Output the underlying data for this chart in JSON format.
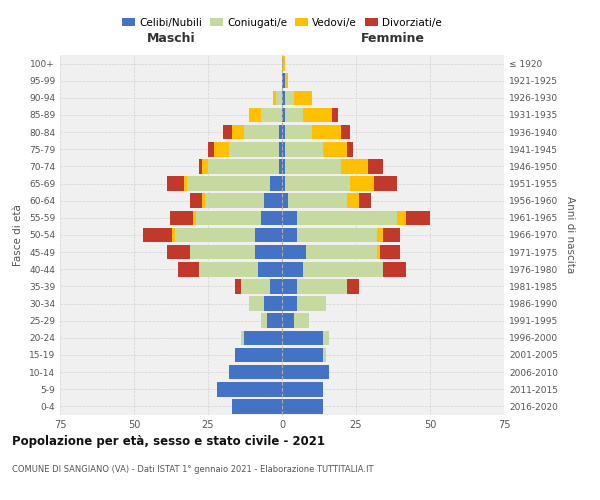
{
  "age_groups": [
    "0-4",
    "5-9",
    "10-14",
    "15-19",
    "20-24",
    "25-29",
    "30-34",
    "35-39",
    "40-44",
    "45-49",
    "50-54",
    "55-59",
    "60-64",
    "65-69",
    "70-74",
    "75-79",
    "80-84",
    "85-89",
    "90-94",
    "95-99",
    "100+"
  ],
  "birth_years": [
    "2016-2020",
    "2011-2015",
    "2006-2010",
    "2001-2005",
    "1996-2000",
    "1991-1995",
    "1986-1990",
    "1981-1985",
    "1976-1980",
    "1971-1975",
    "1966-1970",
    "1961-1965",
    "1956-1960",
    "1951-1955",
    "1946-1950",
    "1941-1945",
    "1936-1940",
    "1931-1935",
    "1926-1930",
    "1921-1925",
    "≤ 1920"
  ],
  "male": {
    "celibe": [
      17,
      22,
      18,
      16,
      13,
      5,
      6,
      4,
      8,
      9,
      9,
      7,
      6,
      4,
      1,
      1,
      1,
      0,
      0,
      0,
      0
    ],
    "coniugato": [
      0,
      0,
      0,
      0,
      1,
      2,
      5,
      10,
      20,
      22,
      27,
      22,
      20,
      28,
      24,
      17,
      12,
      7,
      2,
      0,
      0
    ],
    "vedovo": [
      0,
      0,
      0,
      0,
      0,
      0,
      0,
      0,
      0,
      0,
      1,
      1,
      1,
      1,
      2,
      5,
      4,
      4,
      1,
      0,
      0
    ],
    "divorziato": [
      0,
      0,
      0,
      0,
      0,
      0,
      0,
      2,
      7,
      8,
      10,
      8,
      4,
      6,
      1,
      2,
      3,
      0,
      0,
      0,
      0
    ]
  },
  "female": {
    "nubile": [
      14,
      14,
      16,
      14,
      14,
      4,
      5,
      5,
      7,
      8,
      5,
      5,
      2,
      1,
      1,
      1,
      1,
      1,
      1,
      1,
      0
    ],
    "coniugata": [
      0,
      0,
      0,
      1,
      2,
      5,
      10,
      17,
      27,
      24,
      27,
      34,
      20,
      22,
      19,
      13,
      9,
      6,
      3,
      0,
      0
    ],
    "vedova": [
      0,
      0,
      0,
      0,
      0,
      0,
      0,
      0,
      0,
      1,
      2,
      3,
      4,
      8,
      9,
      8,
      10,
      10,
      6,
      1,
      1
    ],
    "divorziata": [
      0,
      0,
      0,
      0,
      0,
      0,
      0,
      4,
      8,
      7,
      6,
      8,
      4,
      8,
      5,
      2,
      3,
      2,
      0,
      0,
      0
    ]
  },
  "colors": {
    "celibe": "#4472c4",
    "coniugato": "#c5d9a0",
    "vedovo": "#ffc000",
    "divorziato": "#c0392b"
  },
  "xlim": 75,
  "title": "Popolazione per età, sesso e stato civile - 2021",
  "subtitle": "COMUNE DI SANGIANO (VA) - Dati ISTAT 1° gennaio 2021 - Elaborazione TUTTITALIA.IT",
  "ylabel": "Fasce di età",
  "ylabel2": "Anni di nascita",
  "bg_color": "#f0f0f0",
  "grid_color": "#cccccc"
}
